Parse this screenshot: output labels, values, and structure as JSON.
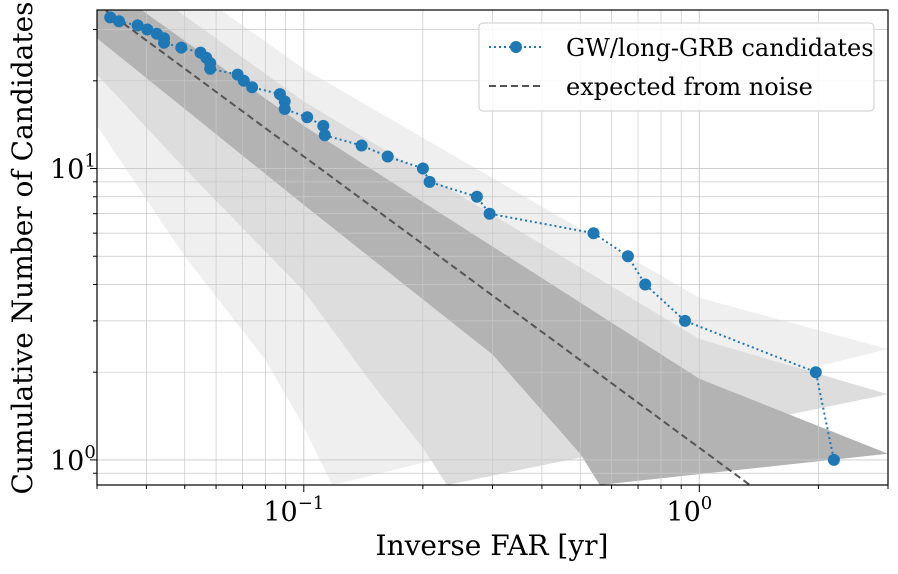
{
  "chart_data": {
    "type": "line",
    "xscale": "log",
    "yscale": "log",
    "xlim": [
      0.03,
      3.0
    ],
    "ylim": [
      0.82,
      35
    ],
    "xlabel": "Inverse FAR [yr]",
    "ylabel": "Cumulative Number of Candidates",
    "grid": true,
    "legend_position": "top-right",
    "x_ticks": [
      {
        "value": 0.1,
        "base": "10",
        "exp": "−1"
      },
      {
        "value": 1,
        "base": "10",
        "exp": "0"
      }
    ],
    "y_ticks": [
      {
        "value": 1,
        "base": "10",
        "exp": "0"
      },
      {
        "value": 10,
        "base": "10",
        "exp": "1"
      }
    ],
    "series": [
      {
        "name": "GW/long-GRB candidates",
        "color": "#1f77b4",
        "style": "dotted-with-markers",
        "points": [
          {
            "x": 0.0324,
            "y": 33
          },
          {
            "x": 0.0341,
            "y": 32
          },
          {
            "x": 0.038,
            "y": 31
          },
          {
            "x": 0.0402,
            "y": 30
          },
          {
            "x": 0.0425,
            "y": 29
          },
          {
            "x": 0.0443,
            "y": 28
          },
          {
            "x": 0.0443,
            "y": 27
          },
          {
            "x": 0.049,
            "y": 26
          },
          {
            "x": 0.0548,
            "y": 25
          },
          {
            "x": 0.0567,
            "y": 24
          },
          {
            "x": 0.058,
            "y": 23
          },
          {
            "x": 0.058,
            "y": 22
          },
          {
            "x": 0.068,
            "y": 21
          },
          {
            "x": 0.0705,
            "y": 20
          },
          {
            "x": 0.074,
            "y": 19
          },
          {
            "x": 0.087,
            "y": 18
          },
          {
            "x": 0.0895,
            "y": 17
          },
          {
            "x": 0.0895,
            "y": 16
          },
          {
            "x": 0.102,
            "y": 15
          },
          {
            "x": 0.112,
            "y": 14
          },
          {
            "x": 0.113,
            "y": 13
          },
          {
            "x": 0.14,
            "y": 12
          },
          {
            "x": 0.163,
            "y": 11
          },
          {
            "x": 0.2,
            "y": 10
          },
          {
            "x": 0.208,
            "y": 9
          },
          {
            "x": 0.274,
            "y": 8
          },
          {
            "x": 0.295,
            "y": 7
          },
          {
            "x": 0.54,
            "y": 6
          },
          {
            "x": 0.66,
            "y": 5
          },
          {
            "x": 0.73,
            "y": 4
          },
          {
            "x": 0.92,
            "y": 3
          },
          {
            "x": 1.97,
            "y": 2
          },
          {
            "x": 2.19,
            "y": 1
          }
        ]
      },
      {
        "name": "expected from noise",
        "color": "#555555",
        "style": "dashed",
        "points": [
          {
            "x": 0.03,
            "y": 36.7
          },
          {
            "x": 0.1,
            "y": 11
          },
          {
            "x": 1.0,
            "y": 1.1
          },
          {
            "x": 1.55,
            "y": 0.71
          }
        ]
      }
    ],
    "bands": [
      {
        "level": 3,
        "color": "#efefef",
        "upper": [
          {
            "x": 0.03,
            "y": 70
          },
          {
            "x": 0.1,
            "y": 22
          },
          {
            "x": 1.0,
            "y": 3.6
          },
          {
            "x": 3.0,
            "y": 2.4
          }
        ],
        "lower": [
          {
            "x": 0.03,
            "y": 14
          },
          {
            "x": 0.05,
            "y": 5
          },
          {
            "x": 0.08,
            "y": 2.2
          },
          {
            "x": 0.1,
            "y": 1.3
          },
          {
            "x": 0.118,
            "y": 0.82
          }
        ]
      },
      {
        "level": 2,
        "color": "#dddddd",
        "upper": [
          {
            "x": 0.03,
            "y": 55
          },
          {
            "x": 0.1,
            "y": 17
          },
          {
            "x": 1.0,
            "y": 2.6
          },
          {
            "x": 3.0,
            "y": 1.68
          }
        ],
        "lower": [
          {
            "x": 0.03,
            "y": 21
          },
          {
            "x": 0.05,
            "y": 10
          },
          {
            "x": 0.1,
            "y": 3.8
          },
          {
            "x": 0.15,
            "y": 1.8
          },
          {
            "x": 0.2,
            "y": 1.1
          },
          {
            "x": 0.23,
            "y": 0.82
          }
        ]
      },
      {
        "level": 1,
        "color": "#b3b3b3",
        "upper": [
          {
            "x": 0.03,
            "y": 45
          },
          {
            "x": 0.1,
            "y": 14
          },
          {
            "x": 1.0,
            "y": 1.9
          },
          {
            "x": 3.0,
            "y": 1.05
          }
        ],
        "lower": [
          {
            "x": 0.03,
            "y": 28
          },
          {
            "x": 0.1,
            "y": 7.5
          },
          {
            "x": 0.3,
            "y": 2.3
          },
          {
            "x": 0.5,
            "y": 1.05
          },
          {
            "x": 0.56,
            "y": 0.82
          }
        ]
      }
    ]
  }
}
